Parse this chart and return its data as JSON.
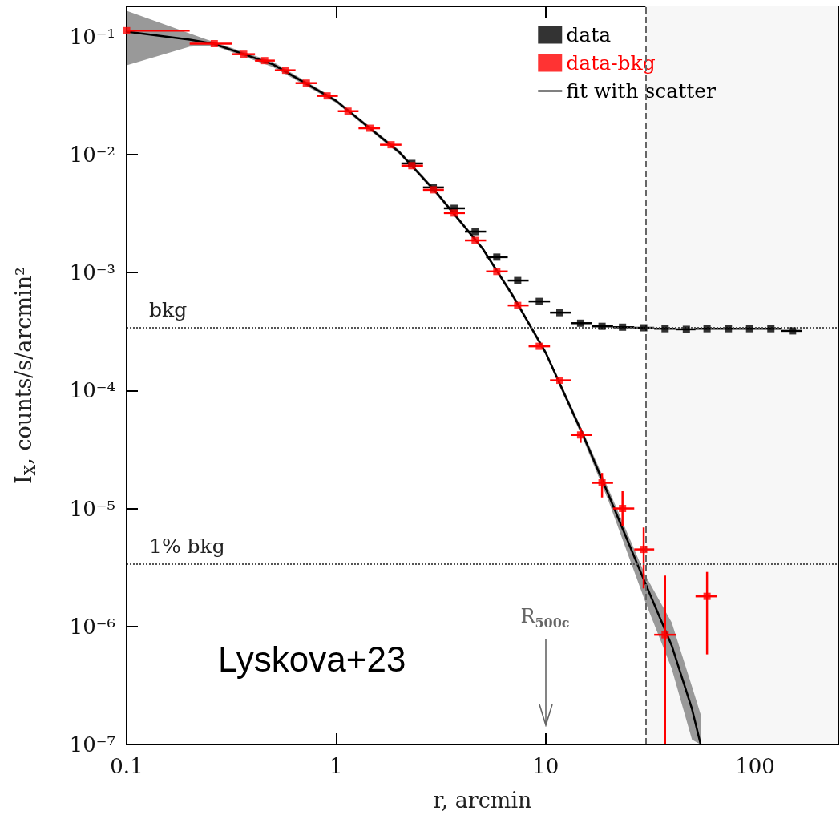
{
  "chart_data": {
    "type": "scatter",
    "xlabel": "r, arcmin",
    "ylabel": "I$_{X}$, counts/s/arcmin²",
    "log": "xy",
    "xlim": [
      0.1,
      250
    ],
    "ylim": [
      1e-07,
      0.18
    ],
    "xticks": [
      0.1,
      1,
      10,
      100
    ],
    "yticks": [
      {
        "value": 1e-07,
        "label": "10⁻⁷"
      },
      {
        "value": 1e-06,
        "label": "10⁻⁶"
      },
      {
        "value": 1e-05,
        "label": "10⁻⁵"
      },
      {
        "value": 0.0001,
        "label": "10⁻⁴"
      },
      {
        "value": 0.001,
        "label": "10⁻³"
      },
      {
        "value": 0.01,
        "label": "10⁻²"
      },
      {
        "value": 0.1,
        "label": "10⁻¹"
      }
    ],
    "grid": false,
    "legend": "top right",
    "marker": "square",
    "series": [
      {
        "name": "data",
        "color": "#000000",
        "x": [
          2.3,
          2.91,
          3.66,
          4.61,
          5.85,
          7.36,
          9.33,
          11.7,
          14.7,
          18.6,
          23.3,
          29.4,
          37.2,
          47,
          59,
          74.6,
          94.2,
          119,
          151
        ],
        "values": [
          0.0084,
          0.00526,
          0.0035,
          0.00222,
          0.00135,
          0.000855,
          0.000569,
          0.000457,
          0.000372,
          0.00035,
          0.000344,
          0.00034,
          0.000334,
          0.00033,
          0.000334,
          0.000334,
          0.000334,
          0.000334,
          0.00032
        ],
        "xerrors": [
          [
            2.05,
            2.6
          ],
          [
            2.6,
            3.27
          ],
          [
            3.27,
            4.12
          ],
          [
            4.12,
            5.2
          ],
          [
            5.2,
            6.6
          ],
          [
            6.6,
            8.3
          ],
          [
            8.3,
            10.5
          ],
          [
            10.5,
            13.2
          ],
          [
            13.2,
            16.6
          ],
          [
            16.6,
            21
          ],
          [
            21,
            26.5
          ],
          [
            26.5,
            33
          ],
          [
            33,
            42
          ],
          [
            42,
            52
          ],
          [
            52,
            66
          ],
          [
            66,
            83
          ],
          [
            83,
            105
          ],
          [
            105,
            133
          ],
          [
            133,
            168
          ]
        ]
      },
      {
        "name": "data-bkg",
        "color": "#ff0000",
        "x": [
          0.1,
          0.262,
          0.362,
          0.456,
          0.574,
          0.721,
          0.906,
          1.14,
          1.45,
          1.83,
          2.3,
          2.91,
          3.66,
          4.61,
          5.85,
          7.36,
          9.33,
          11.7,
          14.7,
          18.6,
          23.3,
          29.4,
          37.2,
          59
        ],
        "values": [
          0.112,
          0.087,
          0.0708,
          0.0625,
          0.0518,
          0.0403,
          0.0314,
          0.0233,
          0.0167,
          0.0121,
          0.00804,
          0.00502,
          0.00319,
          0.00187,
          0.00102,
          0.000526,
          0.000237,
          0.000122,
          4.2e-05,
          1.65e-05,
          1e-05,
          4.5e-06,
          8.5e-07,
          1.8e-06
        ],
        "xerrors": [
          [
            0.1,
            0.2
          ],
          [
            0.2,
            0.32
          ],
          [
            0.32,
            0.41
          ],
          [
            0.41,
            0.51
          ],
          [
            0.51,
            0.64
          ],
          [
            0.64,
            0.81
          ],
          [
            0.81,
            1.02
          ],
          [
            1.02,
            1.28
          ],
          [
            1.28,
            1.62
          ],
          [
            1.62,
            2.05
          ],
          [
            2.05,
            2.6
          ],
          [
            2.6,
            3.27
          ],
          [
            3.27,
            4.12
          ],
          [
            4.12,
            5.2
          ],
          [
            5.2,
            6.6
          ],
          [
            6.6,
            8.3
          ],
          [
            8.3,
            10.5
          ],
          [
            10.5,
            13.2
          ],
          [
            13.2,
            16.6
          ],
          [
            16.6,
            21
          ],
          [
            21,
            26.5
          ],
          [
            26.5,
            33
          ],
          [
            33,
            42
          ],
          [
            52,
            66
          ]
        ],
        "errors": [
          null,
          null,
          null,
          null,
          null,
          null,
          null,
          null,
          null,
          null,
          null,
          null,
          null,
          null,
          null,
          null,
          null,
          null,
          [
            3.6e-05,
            4.8e-05
          ],
          [
            1.24e-05,
            2e-05
          ],
          [
            7.1e-06,
            1.4e-05
          ],
          [
            2.1e-06,
            6.9e-06
          ],
          [
            1e-07,
            2.7e-06
          ],
          [
            5.8e-07,
            2.9e-06
          ]
        ]
      },
      {
        "name": "fit with scatter",
        "type": "line",
        "marker": "none",
        "color": "#000000",
        "x": [
          0.1,
          0.2,
          0.26,
          0.5,
          1,
          2,
          3,
          5,
          7,
          10,
          15,
          20,
          30,
          40,
          50,
          55
        ],
        "values": [
          0.11,
          0.094,
          0.087,
          0.058,
          0.0285,
          0.0105,
          0.0048,
          0.0016,
          0.00063,
          0.00021,
          4.3e-05,
          1.3e-05,
          2.3e-06,
          6.9e-07,
          2e-07,
          1e-07
        ],
        "lower": [
          0.057,
          0.082,
          0.084,
          0.055,
          0.0275,
          0.0101,
          0.0046,
          0.00154,
          0.0006,
          0.0002,
          4e-05,
          1.15e-05,
          1.6e-06,
          4.4e-07,
          1.1e-07,
          1e-07
        ],
        "upper": [
          0.165,
          0.106,
          0.09,
          0.061,
          0.0295,
          0.0109,
          0.005,
          0.00166,
          0.00066,
          0.00022,
          4.6e-05,
          1.45e-05,
          2.7e-06,
          1.08e-06,
          3.1e-07,
          1.8e-07
        ]
      }
    ],
    "ref_lines": [
      {
        "axis": "y",
        "value": 0.00034,
        "label": "bkg",
        "line_style": "dotted",
        "color": "#555555"
      },
      {
        "axis": "y",
        "value": 3.4e-06,
        "label": "1% bkg",
        "line_style": "dotted",
        "color": "#555555"
      },
      {
        "axis": "x",
        "value": 30,
        "line_style": "dashed",
        "color": "#666666"
      }
    ],
    "bands": [
      {
        "axis": "x",
        "from": 30,
        "to": 250,
        "color": "#f7f7f7"
      }
    ],
    "annotations": [
      "R$_{500c}$",
      "Lyskova+23"
    ]
  }
}
